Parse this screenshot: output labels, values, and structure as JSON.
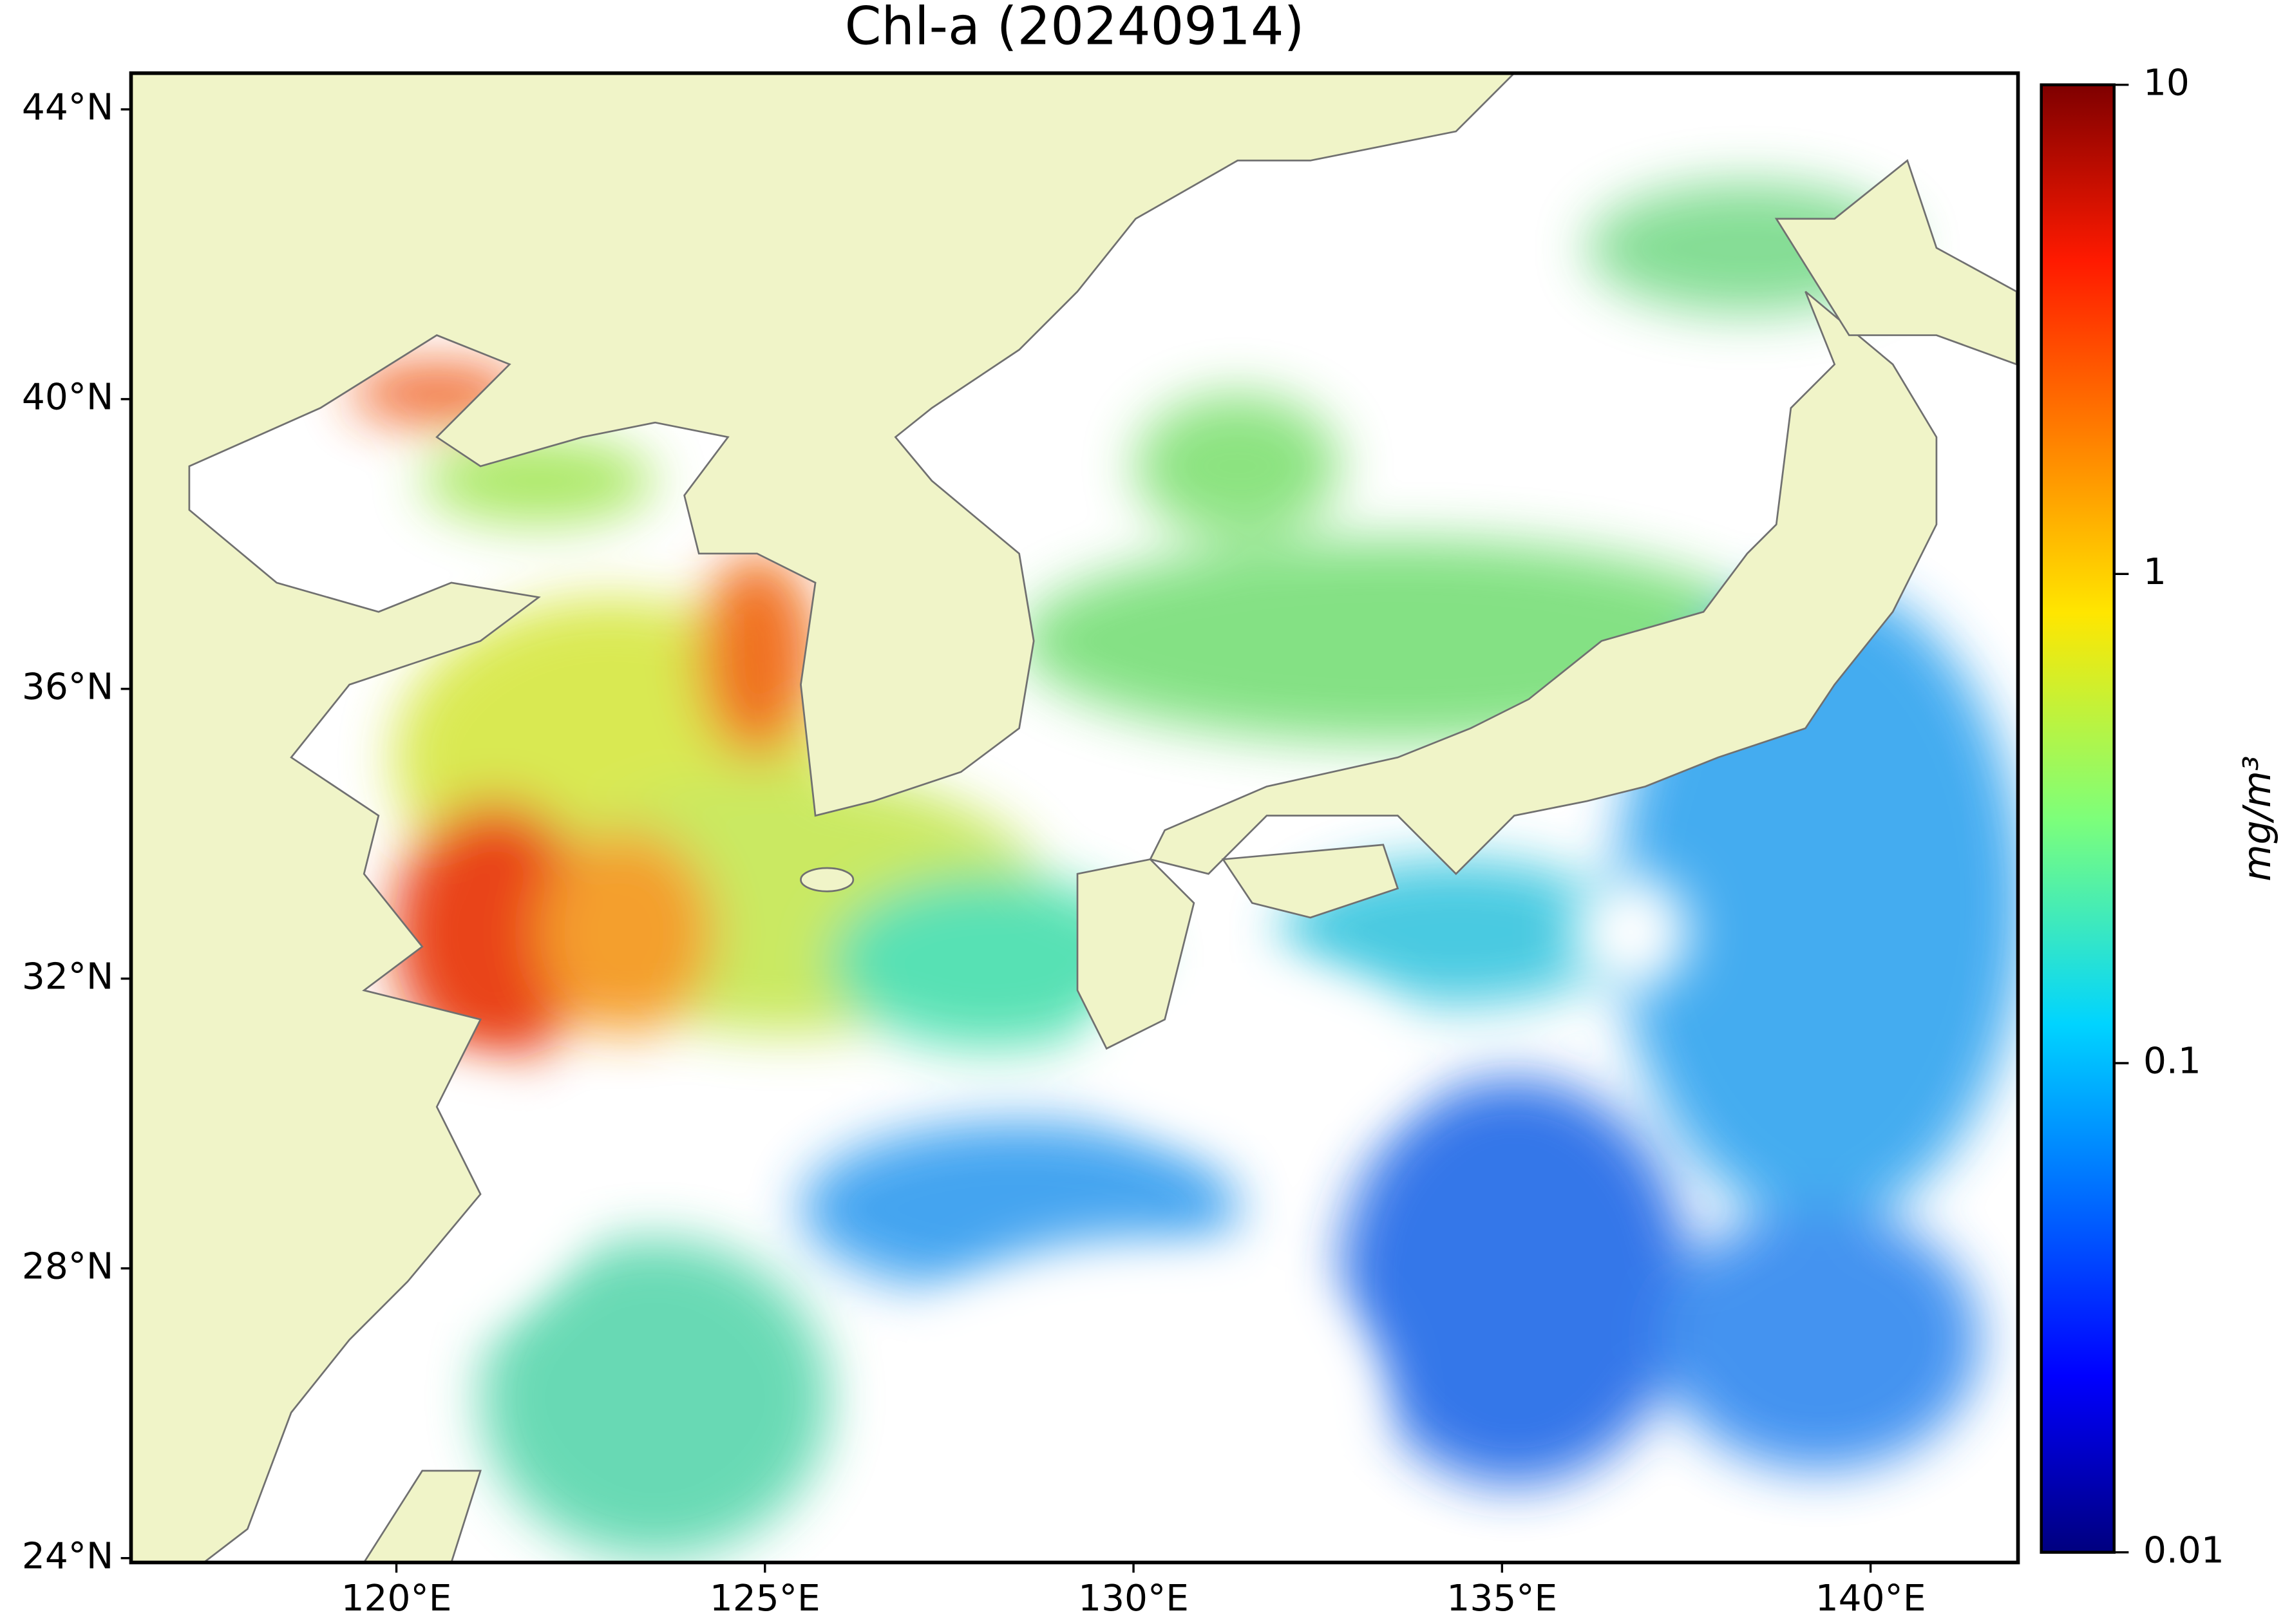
{
  "chart_data": {
    "type": "map",
    "title": "Chl-a (20240914)",
    "xlim": [
      116.4,
      142.0
    ],
    "ylim": [
      23.94,
      44.5
    ],
    "xticks": [
      {
        "value": 120,
        "label": "120°E"
      },
      {
        "value": 125,
        "label": "125°E"
      },
      {
        "value": 130,
        "label": "130°E"
      },
      {
        "value": 135,
        "label": "135°E"
      },
      {
        "value": 140,
        "label": "140°E"
      }
    ],
    "yticks": [
      {
        "value": 24,
        "label": "24°N"
      },
      {
        "value": 28,
        "label": "28°N"
      },
      {
        "value": 32,
        "label": "32°N"
      },
      {
        "value": 36,
        "label": "36°N"
      },
      {
        "value": 40,
        "label": "40°N"
      },
      {
        "value": 44,
        "label": "44°N"
      }
    ],
    "colorbar": {
      "label": "mg/m³",
      "scale": "log",
      "lim": [
        0.01,
        10
      ],
      "ticks": [
        0.01,
        0.1,
        1,
        10
      ]
    }
  }
}
